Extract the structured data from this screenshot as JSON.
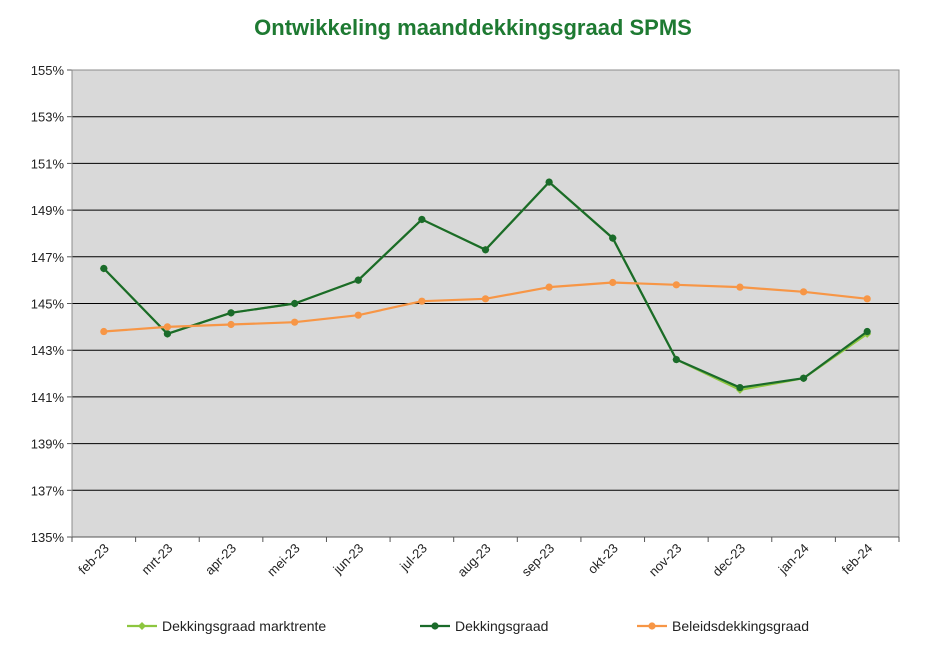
{
  "chart_data": {
    "type": "line",
    "title": "Ontwikkeling maanddekkingsgraad SPMS",
    "xlabel": "",
    "ylabel": "",
    "ylim": [
      135,
      155
    ],
    "ytick_step": 2,
    "yticks": [
      "135%",
      "137%",
      "139%",
      "141%",
      "143%",
      "145%",
      "147%",
      "149%",
      "151%",
      "153%",
      "155%"
    ],
    "categories": [
      "feb-23",
      "mrt-23",
      "apr-23",
      "mei-23",
      "jun-23",
      "jul-23",
      "aug-23",
      "sep-23",
      "okt-23",
      "nov-23",
      "dec-23",
      "jan-24",
      "feb-24"
    ],
    "grid": true,
    "legend": "bottom",
    "series": [
      {
        "name": "Dekkingsgraad marktrente",
        "color": "#8dc63f",
        "marker": "diamond",
        "values": [
          146.5,
          143.7,
          144.6,
          145.0,
          146.0,
          148.6,
          147.3,
          150.2,
          147.8,
          142.6,
          141.3,
          141.8,
          143.7
        ]
      },
      {
        "name": "Dekkingsgraad",
        "color": "#1a6b2a",
        "marker": "circle",
        "values": [
          146.5,
          143.7,
          144.6,
          145.0,
          146.0,
          148.6,
          147.3,
          150.2,
          147.8,
          142.6,
          141.4,
          141.8,
          143.8
        ]
      },
      {
        "name": "Beleidsdekkingsgraad",
        "color": "#f79646",
        "marker": "circle",
        "values": [
          143.8,
          144.0,
          144.1,
          144.2,
          144.5,
          145.1,
          145.2,
          145.7,
          145.9,
          145.8,
          145.7,
          145.5,
          145.2
        ]
      }
    ],
    "plot_background": "#d9d9d9"
  }
}
